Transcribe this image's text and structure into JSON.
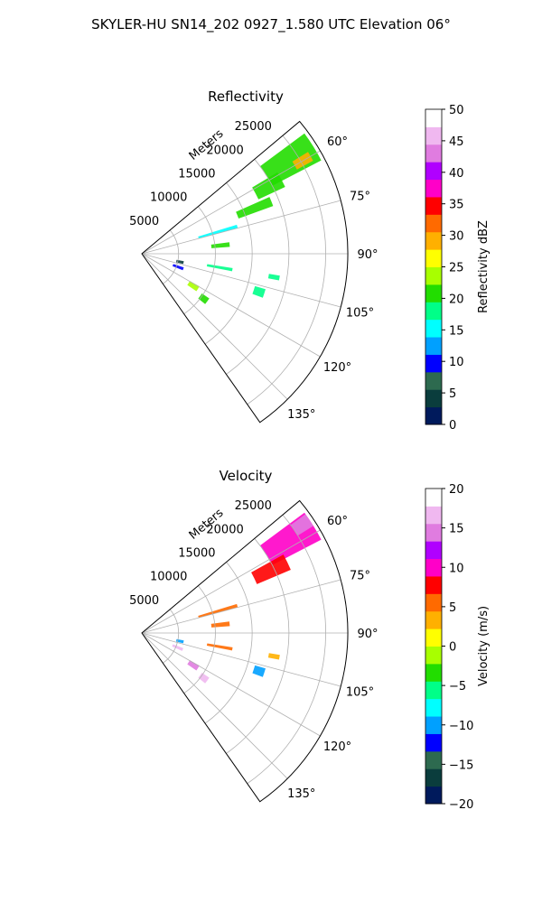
{
  "suptitle": "SKYLER-HU  SN14_202  0927_1.580 UTC Elevation 06°",
  "colors": {
    "grid": "#b0b0b0",
    "axis": "#000000"
  },
  "chart_data": [
    {
      "type": "polar-sector",
      "title": "Reflectivity",
      "radial_label": "Meters",
      "radial_ticks": [
        5000,
        10000,
        15000,
        20000,
        25000
      ],
      "radial_tick_labels": [
        "5000",
        "10000",
        "15000",
        "20000",
        "25000"
      ],
      "rmax": 28000,
      "theta_range_deg": [
        50,
        145
      ],
      "theta_ticks": [
        60,
        75,
        90,
        105,
        120,
        135
      ],
      "theta_tick_labels": [
        "60°",
        "75°",
        "90°",
        "105°",
        "120°",
        "135°"
      ],
      "grid": true,
      "colorbar": {
        "label": "Reflectivity dBZ",
        "vmin": 0,
        "vmax": 50,
        "ticks": [
          0,
          5,
          10,
          15,
          20,
          25,
          30,
          35,
          40,
          45,
          50
        ],
        "tick_labels": [
          "0",
          "5",
          "10",
          "15",
          "20",
          "25",
          "30",
          "35",
          "40",
          "45",
          "50"
        ],
        "stops": [
          "#001a5c",
          "#0a3d3d",
          "#2d6a4f",
          "#0000ff",
          "#00a0ff",
          "#00ffff",
          "#00ff88",
          "#22dd00",
          "#a8ff00",
          "#ffff00",
          "#ffb000",
          "#ff6a00",
          "#ff0000",
          "#ff00c8",
          "#b000ff",
          "#e07ce0",
          "#f0b8f0",
          "#ffffff"
        ]
      },
      "echoes": [
        {
          "az": 58,
          "r0": 20000,
          "r1": 27500,
          "width_deg": 9,
          "value": 22
        },
        {
          "az": 60,
          "r0": 24000,
          "r1": 26500,
          "width_deg": 3,
          "value": 30
        },
        {
          "az": 62,
          "r0": 17500,
          "r1": 21500,
          "width_deg": 6,
          "value": 20
        },
        {
          "az": 68,
          "r0": 14000,
          "r1": 19000,
          "width_deg": 4,
          "value": 21
        },
        {
          "az": 74,
          "r0": 8000,
          "r1": 13500,
          "width_deg": 2,
          "value": 15
        },
        {
          "az": 84,
          "r0": 9500,
          "r1": 12000,
          "width_deg": 3,
          "value": 20
        },
        {
          "az": 100,
          "r0": 9000,
          "r1": 12500,
          "width_deg": 2,
          "value": 18
        },
        {
          "az": 102,
          "r0": 4800,
          "r1": 5800,
          "width_deg": 4,
          "value": 5
        },
        {
          "az": 110,
          "r0": 4500,
          "r1": 6000,
          "width_deg": 4,
          "value": 10
        },
        {
          "az": 122,
          "r0": 7500,
          "r1": 9000,
          "width_deg": 5,
          "value": 24
        },
        {
          "az": 126,
          "r0": 9800,
          "r1": 11000,
          "width_deg": 5,
          "value": 22
        },
        {
          "az": 100,
          "r0": 17500,
          "r1": 19000,
          "width_deg": 2,
          "value": 18
        },
        {
          "az": 108,
          "r0": 16000,
          "r1": 17500,
          "width_deg": 4,
          "value": 18
        }
      ]
    },
    {
      "type": "polar-sector",
      "title": "Velocity",
      "radial_label": "Meters",
      "radial_ticks": [
        5000,
        10000,
        15000,
        20000,
        25000
      ],
      "radial_tick_labels": [
        "5000",
        "10000",
        "15000",
        "20000",
        "25000"
      ],
      "rmax": 28000,
      "theta_range_deg": [
        50,
        145
      ],
      "theta_ticks": [
        60,
        75,
        90,
        105,
        120,
        135
      ],
      "theta_tick_labels": [
        "60°",
        "75°",
        "90°",
        "105°",
        "120°",
        "135°"
      ],
      "grid": true,
      "colorbar": {
        "label": "Velocity (m/s)",
        "vmin": -20,
        "vmax": 20,
        "ticks": [
          -20,
          -15,
          -10,
          -5,
          0,
          5,
          10,
          15,
          20
        ],
        "tick_labels": [
          "−20",
          "−15",
          "−10",
          "−5",
          "0",
          "5",
          "10",
          "15",
          "20"
        ],
        "stops": [
          "#001a5c",
          "#0a3d3d",
          "#2d6a4f",
          "#0000ff",
          "#00a0ff",
          "#00ffff",
          "#00ff88",
          "#22dd00",
          "#a8ff00",
          "#ffff00",
          "#ffb000",
          "#ff6a00",
          "#ff0000",
          "#ff00c8",
          "#b000ff",
          "#e07ce0",
          "#f0b8f0",
          "#ffffff"
        ]
      },
      "echoes": [
        {
          "az": 58,
          "r0": 20000,
          "r1": 27500,
          "width_deg": 9,
          "value": 9
        },
        {
          "az": 56,
          "r0": 25000,
          "r1": 27500,
          "width_deg": 4,
          "value": 14
        },
        {
          "az": 64,
          "r0": 17000,
          "r1": 22000,
          "width_deg": 6,
          "value": 8
        },
        {
          "az": 74,
          "r0": 8000,
          "r1": 13500,
          "width_deg": 2,
          "value": 6
        },
        {
          "az": 84,
          "r0": 9500,
          "r1": 12000,
          "width_deg": 3,
          "value": 6
        },
        {
          "az": 100,
          "r0": 9000,
          "r1": 12500,
          "width_deg": 2,
          "value": 6
        },
        {
          "az": 102,
          "r0": 4800,
          "r1": 5800,
          "width_deg": 4,
          "value": -10
        },
        {
          "az": 112,
          "r0": 4500,
          "r1": 6000,
          "width_deg": 4,
          "value": 16
        },
        {
          "az": 122,
          "r0": 7500,
          "r1": 9000,
          "width_deg": 5,
          "value": 14
        },
        {
          "az": 126,
          "r0": 9800,
          "r1": 11000,
          "width_deg": 5,
          "value": 16
        },
        {
          "az": 108,
          "r0": 16000,
          "r1": 17500,
          "width_deg": 4,
          "value": -10
        },
        {
          "az": 100,
          "r0": 17500,
          "r1": 19000,
          "width_deg": 2,
          "value": 3
        }
      ]
    }
  ]
}
